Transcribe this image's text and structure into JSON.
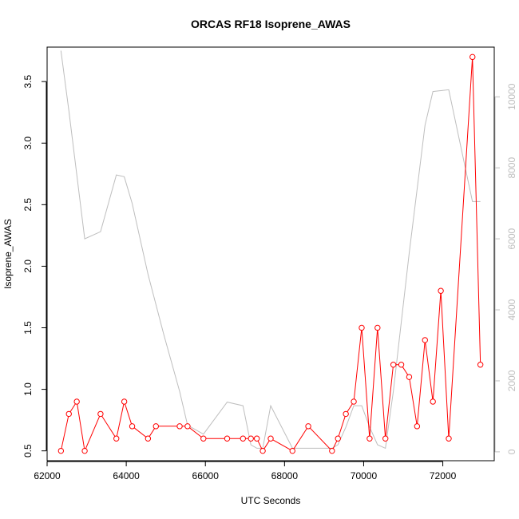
{
  "chart_data": {
    "type": "line",
    "title": "ORCAS RF18 Isoprene_AWAS",
    "xlabel": "UTC Seconds",
    "ylabel": "Isoprene_AWAS",
    "xlim": [
      62000,
      73300
    ],
    "ylim": [
      0.42,
      3.78
    ],
    "y2lim": [
      -250,
      11400
    ],
    "x_ticks": [
      62000,
      64000,
      66000,
      68000,
      70000,
      72000
    ],
    "x_tick_labels": [
      "62000",
      "64000",
      "66000",
      "68000",
      "70000",
      "72000"
    ],
    "y_ticks": [
      0.5,
      1.0,
      1.5,
      2.0,
      2.5,
      3.0,
      3.5
    ],
    "y_tick_labels": [
      "0.5",
      "1.0",
      "1.5",
      "2.0",
      "2.5",
      "3.0",
      "3.5"
    ],
    "y2_ticks": [
      0,
      2000,
      4000,
      6000,
      8000,
      10000
    ],
    "y2_tick_labels": [
      "0",
      "2000",
      "4000",
      "6000",
      "8000",
      "10000"
    ],
    "series": [
      {
        "color": "#ff0000",
        "axis": "left",
        "marker": "open-circle",
        "x": [
          62350,
          62550,
          62750,
          62950,
          63350,
          63750,
          63950,
          64150,
          64550,
          64750,
          65350,
          65550,
          65950,
          66550,
          66950,
          67150,
          67300,
          67450,
          67650,
          68200,
          68600,
          69200,
          69350,
          69550,
          69750,
          69950,
          70150,
          70350,
          70550,
          70750,
          70950,
          71150,
          71350,
          71550,
          71750,
          71950,
          72150,
          72750,
          72950
        ],
        "y": [
          0.5,
          0.8,
          0.9,
          0.5,
          0.8,
          0.6,
          0.9,
          0.7,
          0.6,
          0.7,
          0.7,
          0.7,
          0.6,
          0.6,
          0.6,
          0.6,
          0.6,
          0.5,
          0.6,
          0.5,
          0.7,
          0.5,
          0.6,
          0.8,
          0.9,
          1.5,
          0.6,
          1.5,
          0.6,
          1.2,
          1.2,
          1.1,
          0.7,
          1.4,
          0.9,
          1.8,
          0.6,
          3.7,
          1.2
        ]
      },
      {
        "color": "#bebebe",
        "axis": "right",
        "marker": "none",
        "x": [
          62350,
          62550,
          62950,
          63350,
          63750,
          63950,
          64150,
          64550,
          64950,
          65350,
          65550,
          65950,
          66550,
          66950,
          67150,
          67300,
          67450,
          67650,
          68200,
          69200,
          69350,
          69550,
          69750,
          69950,
          70150,
          70350,
          70550,
          70750,
          71150,
          71550,
          71750,
          72150,
          72750,
          72950
        ],
        "y": [
          11300,
          9600,
          6000,
          6200,
          7800,
          7750,
          7000,
          5000,
          3300,
          1700,
          750,
          500,
          1400,
          1300,
          200,
          100,
          100,
          1300,
          100,
          100,
          200,
          700,
          1300,
          1300,
          700,
          200,
          100,
          1700,
          5600,
          9200,
          10150,
          10200,
          7050,
          7050
        ]
      }
    ]
  }
}
